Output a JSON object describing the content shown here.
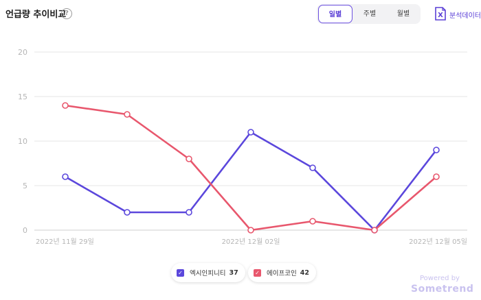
{
  "header": {
    "title": "언급량 추이비교",
    "help_label": "?"
  },
  "period_tabs": [
    {
      "label": "일별",
      "active": true
    },
    {
      "label": "주별",
      "active": false
    },
    {
      "label": "월별",
      "active": false
    }
  ],
  "export": {
    "icon": "excel-icon",
    "icon_letter": "X",
    "label": "분석데이터"
  },
  "colors": {
    "series_1": "#5b47dc",
    "series_2": "#e8576d",
    "grid": "#e6e6e6",
    "axis_text": "#b5b5b5"
  },
  "chart_data": {
    "type": "line",
    "title": "언급량 추이비교",
    "x": [
      "2022년 11월 29일",
      "2022년 11월 30일",
      "2022년 12월 01일",
      "2022년 12월 02일",
      "2022년 12월 03일",
      "2022년 12월 04일",
      "2022년 12월 05일"
    ],
    "x_tick_labels": [
      "2022년 11월 29일",
      "2022년 12월 02일",
      "2022년 12월 05일"
    ],
    "ylim": [
      0,
      20
    ],
    "yticks": [
      0,
      5,
      10,
      15,
      20
    ],
    "grid": true,
    "legend_position": "bottom",
    "series": [
      {
        "name": "엑시인피니티",
        "total": 37,
        "values": [
          6,
          2,
          2,
          11,
          7,
          0,
          9
        ]
      },
      {
        "name": "에이프코인",
        "total": 42,
        "values": [
          14,
          13,
          8,
          0,
          1,
          0,
          6
        ]
      }
    ]
  },
  "watermark": {
    "line1": "Powered by",
    "line2": "Sometrend"
  }
}
